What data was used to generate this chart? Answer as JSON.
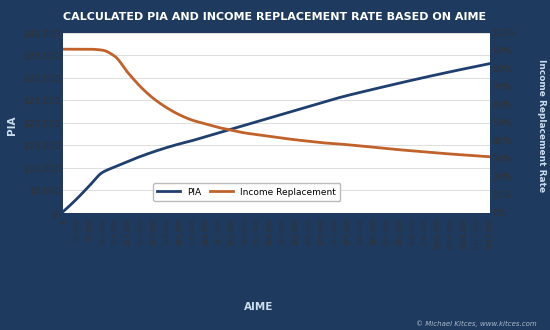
{
  "title": "CALCULATED PIA AND INCOME REPLACEMENT RATE BASED ON AIME",
  "xlabel": "AIME",
  "ylabel_left": "PIA",
  "ylabel_right": "Income Replacement Rate",
  "background_color": "#1e3a5f",
  "plot_bg_color": "#ffffff",
  "title_color": "#ffffff",
  "grid_color": "#d0d0d0",
  "line_pia_color": "#1f3f6e",
  "line_ir_color": "#c0622a",
  "watermark": "© Michael Kitces, www.kitces.com",
  "aime_values": [
    0,
    3500,
    7000,
    10500,
    14000,
    17500,
    21000,
    24500,
    28000,
    31500,
    35000,
    38500,
    42000,
    45500,
    49000,
    52500,
    56000,
    59500,
    63000,
    66500,
    70000,
    73500,
    77000,
    80500,
    84000,
    87500,
    91000,
    94500,
    98000,
    101500,
    105000,
    108500,
    112000,
    115500
  ],
  "pia_values": [
    300,
    2975,
    5950,
    8925,
    10234,
    11449,
    12568,
    13588,
    14513,
    15343,
    16079,
    16921,
    17763,
    18605,
    19447,
    20289,
    21131,
    21973,
    22815,
    23657,
    24499,
    25341,
    26100,
    26800,
    27490,
    28170,
    28840,
    29500,
    30150,
    30780,
    31400,
    32000,
    32600,
    33180
  ],
  "ir_values": [
    0.91,
    0.91,
    0.91,
    0.905,
    0.87,
    0.78,
    0.7,
    0.635,
    0.585,
    0.545,
    0.515,
    0.495,
    0.475,
    0.46,
    0.445,
    0.435,
    0.425,
    0.415,
    0.406,
    0.398,
    0.39,
    0.385,
    0.379,
    0.372,
    0.365,
    0.358,
    0.351,
    0.345,
    0.339,
    0.333,
    0.327,
    0.322,
    0.317,
    0.312
  ],
  "ylim_left": [
    0,
    40000
  ],
  "ylim_right": [
    0,
    1.0
  ],
  "xtick_labels": [
    "$-",
    "$3,500",
    "$7,000",
    "$10,500",
    "$14,000",
    "$17,500",
    "$21,000",
    "$24,500",
    "$28,000",
    "$31,500",
    "$35,000",
    "$38,500",
    "$42,000",
    "$45,500",
    "$49,000",
    "$52,500",
    "$56,000",
    "$59,500",
    "$63,000",
    "$66,500",
    "$70,000",
    "$73,500",
    "$77,000",
    "$80,500",
    "$84,000",
    "$87,500",
    "$91,000",
    "$94,500",
    "$98,000",
    "$101,500",
    "$105,000",
    "$108,500",
    "$112,000",
    "$115,500"
  ],
  "ytick_left": [
    0,
    5000,
    10000,
    15000,
    20000,
    25000,
    30000,
    35000,
    40000
  ],
  "ytick_right": [
    0.0,
    0.1,
    0.2,
    0.3,
    0.4,
    0.5,
    0.6,
    0.7,
    0.8,
    0.9,
    1.0
  ],
  "legend_pia": "PIA",
  "legend_ir": "Income Replacement"
}
